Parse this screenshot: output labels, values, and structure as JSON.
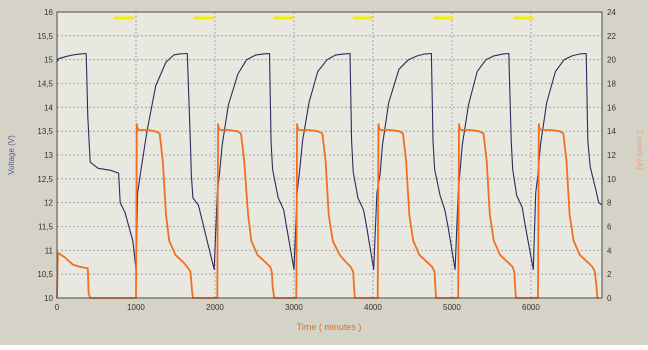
{
  "chart_data": {
    "type": "line",
    "xlabel": "Time ( minutes )",
    "ylabel": "Voltage (V)",
    "y2label": "Current (A)",
    "xlim": [
      0,
      6900
    ],
    "ylim": [
      10,
      16
    ],
    "y2lim": [
      0,
      24
    ],
    "x_ticks": [
      0,
      1000,
      2000,
      3000,
      4000,
      5000,
      6000
    ],
    "y_ticks": [
      10,
      10.5,
      11,
      11.5,
      12,
      12.5,
      13,
      13.5,
      14,
      14.5,
      15,
      15.5,
      16
    ],
    "y_tick_labels": [
      "10",
      "10,5",
      "11",
      "11,5",
      "12",
      "12,5",
      "13",
      "13,5",
      "14",
      "14,5",
      "15",
      "15,5",
      "16"
    ],
    "y2_ticks": [
      0,
      2,
      4,
      6,
      8,
      10,
      12,
      14,
      16,
      18,
      20,
      22,
      24
    ],
    "grid": true,
    "colors": {
      "voltage": "#2b2b5e",
      "current": "#f07020",
      "marker": "#f0f000",
      "grid": "#9a9a9a",
      "plot_bg": "#e8e8e0",
      "frame_bg": "#d5d2c8"
    },
    "series": [
      {
        "axis": "left",
        "x": [
          0,
          20,
          100,
          200,
          300,
          370,
          390,
          420,
          520,
          680,
          780,
          800,
          860,
          960,
          1000,
          1020,
          1060,
          1140,
          1250,
          1380,
          1480,
          1550,
          1650,
          1690,
          1700,
          1720,
          1790,
          1850,
          1900,
          1990,
          2030,
          2060,
          2090,
          2170,
          2290,
          2400,
          2520,
          2620,
          2690,
          2710,
          2730,
          2800,
          2870,
          2900,
          3000,
          3040,
          3070,
          3110,
          3190,
          3300,
          3420,
          3530,
          3640,
          3710,
          3730,
          3750,
          3810,
          3880,
          3920,
          4010,
          4050,
          4090,
          4120,
          4200,
          4330,
          4450,
          4560,
          4660,
          4740,
          4760,
          4780,
          4850,
          4910,
          4950,
          5040,
          5080,
          5100,
          5130,
          5210,
          5320,
          5430,
          5530,
          5650,
          5720,
          5750,
          5770,
          5820,
          5890,
          5930,
          6030,
          6060,
          6090,
          6120,
          6200,
          6310,
          6420,
          6520,
          6620,
          6700,
          6720,
          6750,
          6810,
          6860,
          6900
        ],
        "values": [
          14.95,
          15.02,
          15.06,
          15.1,
          15.12,
          15.13,
          13.8,
          12.85,
          12.72,
          12.68,
          12.62,
          12.0,
          11.8,
          11.2,
          10.6,
          12.2,
          12.65,
          13.5,
          14.45,
          14.95,
          15.1,
          15.12,
          15.13,
          13.2,
          12.6,
          12.1,
          11.95,
          11.55,
          11.2,
          10.6,
          12.2,
          12.65,
          13.2,
          14.05,
          14.7,
          15.0,
          15.1,
          15.12,
          15.13,
          13.25,
          12.7,
          12.1,
          11.85,
          11.55,
          10.6,
          12.2,
          12.65,
          13.3,
          14.1,
          14.75,
          15.0,
          15.1,
          15.12,
          15.13,
          13.3,
          12.65,
          12.1,
          11.85,
          11.5,
          10.6,
          12.2,
          12.6,
          13.2,
          14.1,
          14.8,
          15.0,
          15.08,
          15.12,
          15.13,
          13.3,
          12.7,
          12.15,
          11.85,
          11.5,
          10.6,
          12.2,
          12.6,
          13.2,
          14.05,
          14.75,
          15.0,
          15.08,
          15.12,
          15.13,
          13.3,
          12.7,
          12.15,
          11.9,
          11.5,
          10.6,
          12.2,
          12.6,
          13.2,
          14.1,
          14.75,
          15.0,
          15.08,
          15.12,
          15.13,
          13.3,
          12.75,
          12.35,
          12.0,
          11.95
        ]
      },
      {
        "axis": "right",
        "x": [
          0,
          10,
          100,
          200,
          300,
          390,
          400,
          420,
          1000,
          1010,
          1020,
          1040,
          1140,
          1240,
          1300,
          1340,
          1380,
          1420,
          1500,
          1600,
          1650,
          1690,
          1710,
          1720,
          1740,
          2030,
          2040,
          2050,
          2070,
          2170,
          2280,
          2330,
          2370,
          2420,
          2460,
          2540,
          2640,
          2700,
          2720,
          2730,
          2750,
          2760,
          3030,
          3040,
          3050,
          3070,
          3180,
          3300,
          3360,
          3400,
          3440,
          3490,
          3580,
          3660,
          3720,
          3750,
          3760,
          3770,
          3790,
          4060,
          4070,
          4080,
          4100,
          4210,
          4330,
          4380,
          4420,
          4460,
          4510,
          4590,
          4690,
          4750,
          4780,
          4790,
          4800,
          4820,
          5080,
          5090,
          5100,
          5120,
          5230,
          5340,
          5400,
          5440,
          5480,
          5530,
          5610,
          5710,
          5770,
          5790,
          5800,
          5810,
          5830,
          6090,
          6100,
          6110,
          6130,
          6240,
          6360,
          6410,
          6450,
          6490,
          6540,
          6620,
          6720,
          6780,
          6810,
          6830,
          6840,
          6860
        ],
        "values": [
          0,
          3.8,
          3.4,
          2.8,
          2.6,
          2.5,
          0.4,
          0,
          0,
          14.6,
          14.2,
          14.1,
          14.1,
          14.0,
          13.8,
          11.5,
          7.0,
          4.8,
          3.6,
          3.0,
          2.6,
          2.2,
          0.5,
          0,
          0,
          0,
          14.6,
          14.2,
          14.1,
          14.1,
          14.0,
          13.8,
          11.5,
          7.0,
          4.8,
          3.6,
          3.0,
          2.6,
          2.2,
          1.0,
          0,
          0,
          0,
          14.6,
          14.2,
          14.1,
          14.1,
          14.0,
          13.8,
          11.5,
          7.0,
          4.8,
          3.6,
          3.0,
          2.6,
          2.2,
          1.0,
          0,
          0,
          0,
          14.6,
          14.2,
          14.1,
          14.1,
          14.0,
          13.8,
          11.5,
          7.0,
          4.8,
          3.6,
          3.0,
          2.6,
          2.2,
          1.0,
          0,
          0,
          0,
          14.6,
          14.2,
          14.1,
          14.1,
          14.0,
          13.8,
          11.5,
          7.0,
          4.8,
          3.6,
          3.0,
          2.6,
          2.2,
          1.0,
          0,
          0,
          0,
          14.6,
          14.2,
          14.1,
          14.1,
          14.0,
          13.8,
          11.5,
          7.0,
          4.8,
          3.6,
          3.0,
          2.6,
          2.2,
          1.0,
          0,
          0
        ]
      }
    ],
    "markers": [
      {
        "x_start": 740,
        "x_end": 960
      },
      {
        "x_start": 1750,
        "x_end": 1970
      },
      {
        "x_start": 2760,
        "x_end": 2980
      },
      {
        "x_start": 3760,
        "x_end": 3980
      },
      {
        "x_start": 4780,
        "x_end": 5000
      },
      {
        "x_start": 5800,
        "x_end": 6020
      }
    ]
  }
}
